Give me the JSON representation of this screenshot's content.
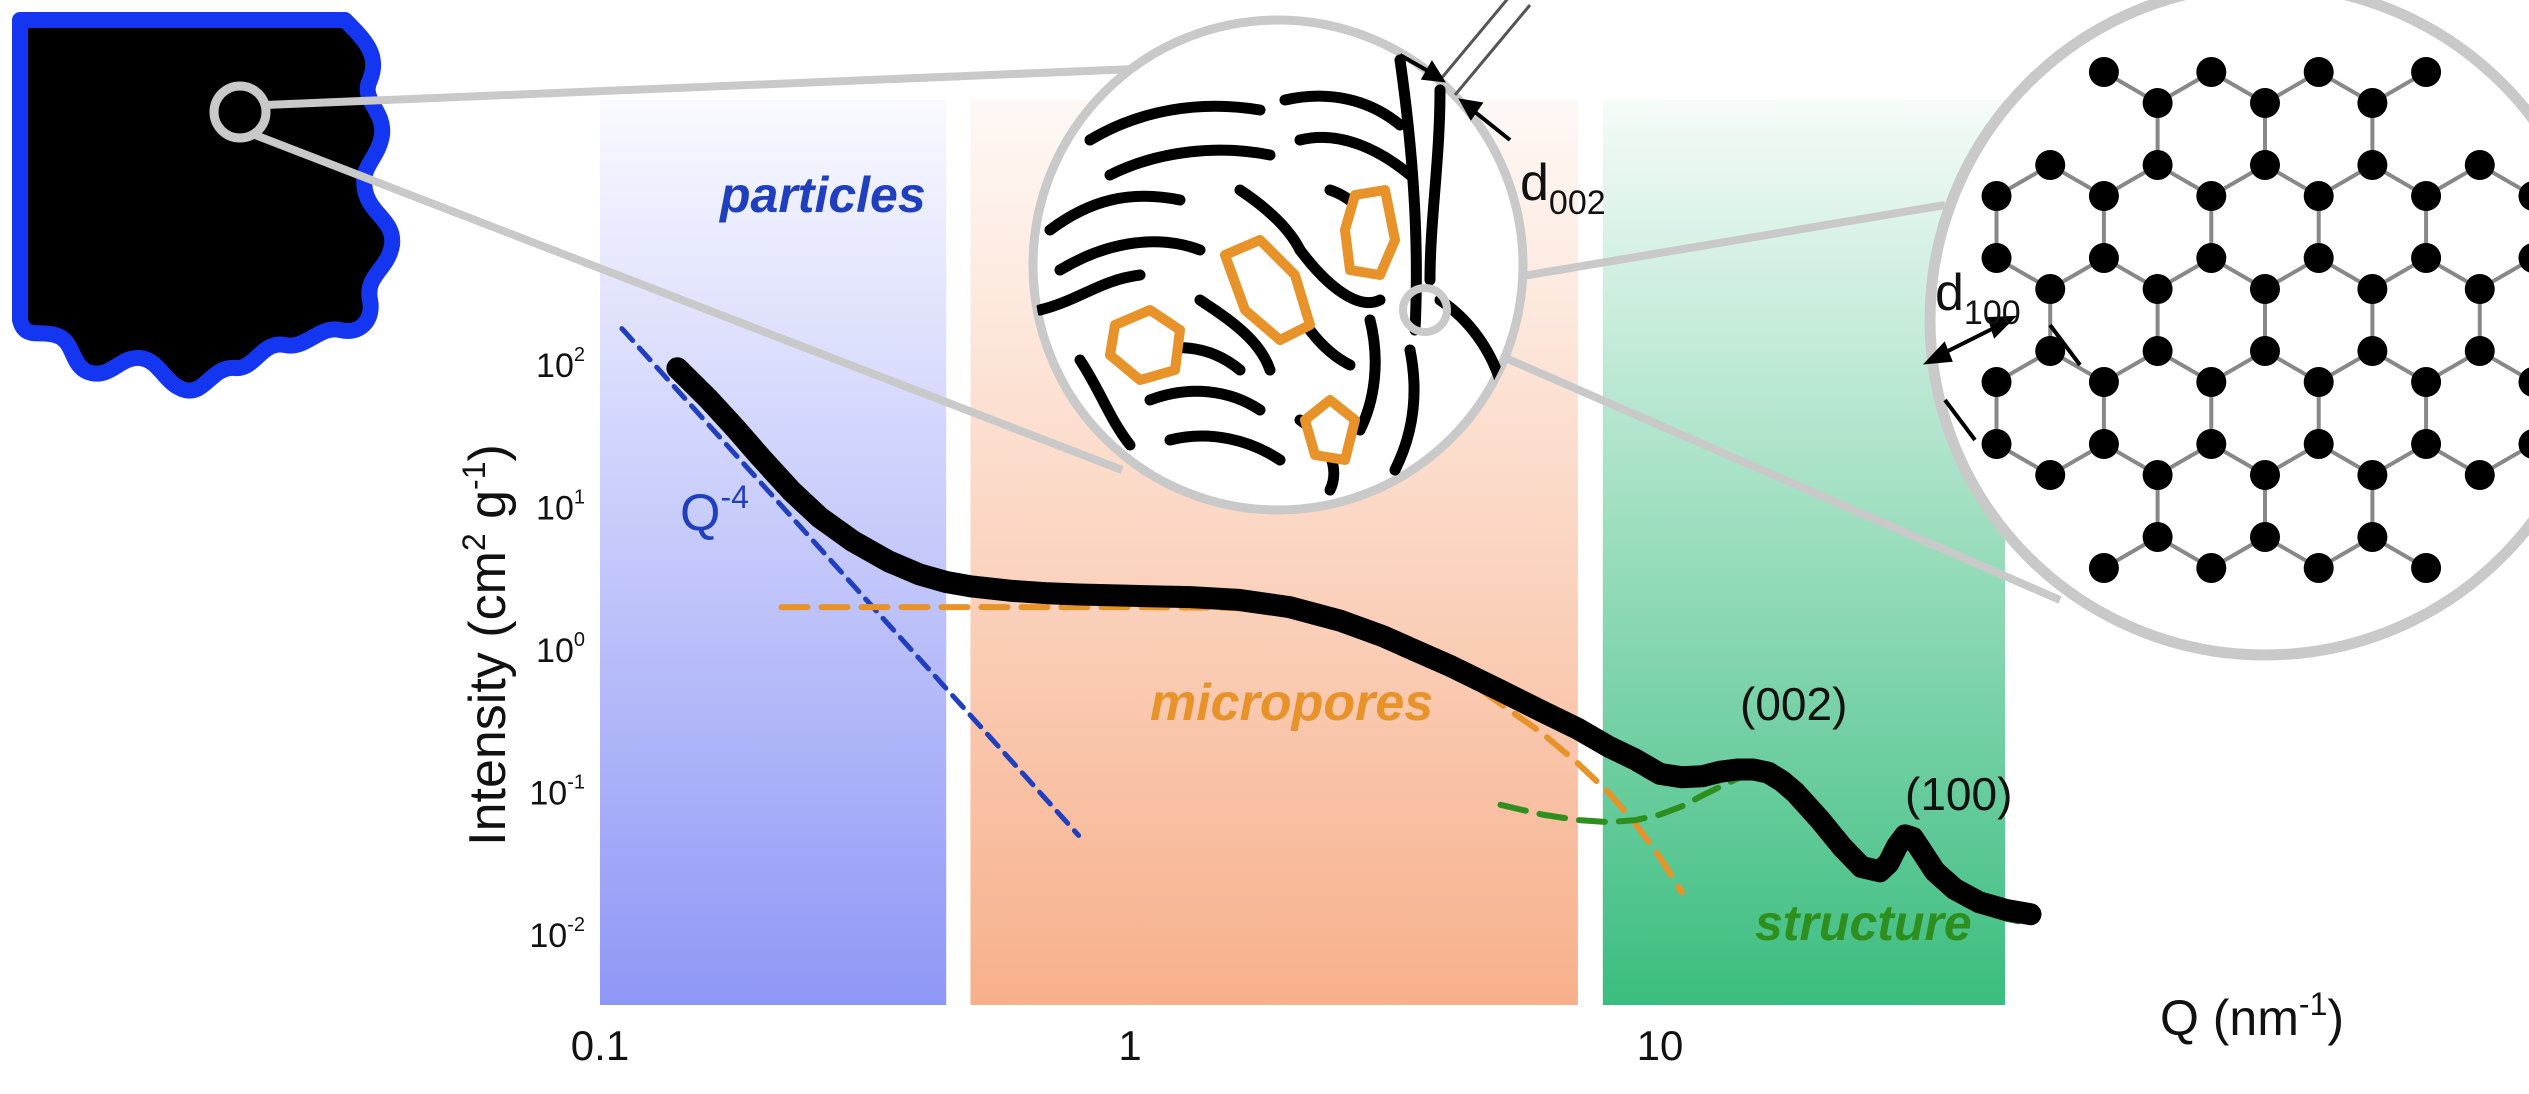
{
  "chart_data": {
    "type": "line",
    "title": "",
    "xlabel": "Q (nm",
    "xlabel_exponent": "-1",
    "xlabel_close": ")",
    "ylabel": "Intensity (cm",
    "ylabel_exp1": "2",
    "ylabel_mid": " g",
    "ylabel_exp2": "-1",
    "ylabel_close": ")",
    "xscale": "log",
    "yscale": "log",
    "xlim": [
      0.1,
      50
    ],
    "ylim": [
      0.005,
      200
    ],
    "x_ticks": [
      {
        "value": 0.1,
        "label": "0.1"
      },
      {
        "value": 1,
        "label": "1"
      },
      {
        "value": 10,
        "label": "10"
      }
    ],
    "y_ticks": [
      {
        "value": 100,
        "base": "10",
        "exp": "2"
      },
      {
        "value": 10,
        "base": "10",
        "exp": "1"
      },
      {
        "value": 1,
        "base": "10",
        "exp": "0"
      },
      {
        "value": 0.1,
        "base": "10",
        "exp": "-1"
      },
      {
        "value": 0.01,
        "base": "10",
        "exp": "-2"
      }
    ],
    "regions": [
      {
        "name": "particles",
        "label": "particles",
        "x_range": [
          0.1,
          0.45
        ],
        "color": "#8f97f6"
      },
      {
        "name": "micropores",
        "label": "micropores",
        "x_range": [
          0.5,
          7.0
        ],
        "color": "#f7b08b"
      },
      {
        "name": "structure",
        "label": "structure",
        "x_range": [
          7.8,
          50
        ],
        "color": "#3bbd7f"
      }
    ],
    "series": [
      {
        "name": "measured intensity",
        "style": "solid",
        "color": "#000000",
        "points": [
          [
            0.14,
            95
          ],
          [
            0.16,
            58
          ],
          [
            0.18,
            36
          ],
          [
            0.2,
            23
          ],
          [
            0.23,
            13
          ],
          [
            0.26,
            8.5
          ],
          [
            0.3,
            5.8
          ],
          [
            0.35,
            4.2
          ],
          [
            0.4,
            3.4
          ],
          [
            0.45,
            3.0
          ],
          [
            0.5,
            2.8
          ],
          [
            0.6,
            2.6
          ],
          [
            0.7,
            2.5
          ],
          [
            0.8,
            2.45
          ],
          [
            1.0,
            2.4
          ],
          [
            1.3,
            2.35
          ],
          [
            1.6,
            2.25
          ],
          [
            2.0,
            2.0
          ],
          [
            2.5,
            1.6
          ],
          [
            3.0,
            1.25
          ],
          [
            3.5,
            0.97
          ],
          [
            4.0,
            0.78
          ],
          [
            5.0,
            0.52
          ],
          [
            6.0,
            0.37
          ],
          [
            7.0,
            0.28
          ],
          [
            8.0,
            0.21
          ],
          [
            9.0,
            0.17
          ],
          [
            10.0,
            0.135
          ],
          [
            11.0,
            0.128
          ],
          [
            12.0,
            0.13
          ],
          [
            13.0,
            0.14
          ],
          [
            14.0,
            0.145
          ],
          [
            15.0,
            0.145
          ],
          [
            16.0,
            0.138
          ],
          [
            17.0,
            0.12
          ],
          [
            18.0,
            0.1
          ],
          [
            20.0,
            0.065
          ],
          [
            22.0,
            0.042
          ],
          [
            24.0,
            0.03
          ],
          [
            26.0,
            0.028
          ],
          [
            27.0,
            0.032
          ],
          [
            28.0,
            0.042
          ],
          [
            29.0,
            0.05
          ],
          [
            30.0,
            0.048
          ],
          [
            31.0,
            0.04
          ],
          [
            33.0,
            0.028
          ],
          [
            36.0,
            0.021
          ],
          [
            40.0,
            0.017
          ],
          [
            45.0,
            0.015
          ],
          [
            50.0,
            0.014
          ]
        ]
      },
      {
        "name": "Q^-4 particle contribution",
        "label": "Q",
        "label_exp": "-4",
        "style": "dashed",
        "color": "#1f3fbf",
        "points": [
          [
            0.11,
            180
          ],
          [
            0.8,
            0.05
          ]
        ]
      },
      {
        "name": "micropore contribution",
        "style": "dashed",
        "color": "#e8922a",
        "points": [
          [
            0.22,
            2.0
          ],
          [
            0.5,
            2.0
          ],
          [
            1.0,
            2.0
          ],
          [
            1.5,
            1.98
          ],
          [
            2.0,
            1.9
          ],
          [
            2.5,
            1.7
          ],
          [
            3.0,
            1.35
          ],
          [
            3.5,
            1.0
          ],
          [
            4.0,
            0.75
          ],
          [
            5.0,
            0.42
          ],
          [
            6.0,
            0.26
          ],
          [
            7.0,
            0.16
          ],
          [
            8.0,
            0.1
          ],
          [
            9.0,
            0.06
          ],
          [
            10.0,
            0.035
          ],
          [
            11.0,
            0.02
          ]
        ]
      },
      {
        "name": "structure contribution",
        "style": "dashed",
        "color": "#2e8f1e",
        "points": [
          [
            5.0,
            0.082
          ],
          [
            6.0,
            0.07
          ],
          [
            7.0,
            0.064
          ],
          [
            8.0,
            0.062
          ],
          [
            9.0,
            0.064
          ],
          [
            10.0,
            0.07
          ],
          [
            11.0,
            0.08
          ],
          [
            12.0,
            0.095
          ],
          [
            13.0,
            0.11
          ],
          [
            14.0,
            0.125
          ],
          [
            15.0,
            0.135
          ],
          [
            16.0,
            0.135
          ],
          [
            17.0,
            0.12
          ],
          [
            18.0,
            0.095
          ],
          [
            20.0,
            0.058
          ],
          [
            22.0,
            0.037
          ],
          [
            24.0,
            0.027
          ],
          [
            26.0,
            0.025
          ],
          [
            27.0,
            0.029
          ],
          [
            28.0,
            0.038
          ],
          [
            29.0,
            0.046
          ],
          [
            30.0,
            0.044
          ],
          [
            31.0,
            0.036
          ],
          [
            33.0,
            0.025
          ],
          [
            36.0,
            0.019
          ],
          [
            40.0,
            0.015
          ],
          [
            45.0,
            0.013
          ],
          [
            50.0,
            0.012
          ]
        ]
      }
    ],
    "annotations": [
      {
        "name": "peak-002",
        "text": "(002)",
        "x": 15,
        "y": 0.145
      },
      {
        "name": "peak-100",
        "text": "(100)",
        "x": 29,
        "y": 0.05
      }
    ]
  },
  "insets": {
    "carbon_pores": {
      "spacing_label": "d",
      "spacing_subscript": "002"
    },
    "graphene": {
      "spacing_label": "d",
      "spacing_subscript": "100"
    }
  },
  "colors": {
    "particle_outline": "#1436f0",
    "pore_outline": "#e8922a",
    "magnifier": "#c9c9c9"
  }
}
